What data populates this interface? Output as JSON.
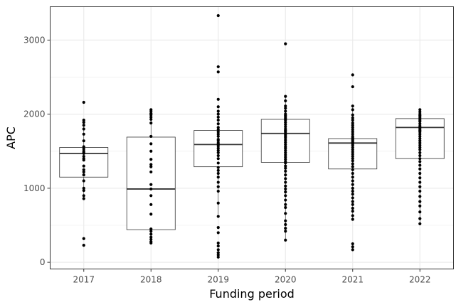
{
  "chart_data": {
    "type": "boxplot",
    "title": "",
    "xlabel": "Funding period",
    "ylabel": "APC",
    "categories": [
      "2017",
      "2018",
      "2019",
      "2020",
      "2021",
      "2022"
    ],
    "ylim": [
      -90,
      3450
    ],
    "yticks": [
      0,
      1000,
      2000,
      3000
    ],
    "grid": true,
    "legend": "none",
    "colors": {
      "box": "#333333",
      "points": "#000000",
      "grid": "#ebebeb",
      "panel_border": "#333333"
    },
    "boxes": [
      {
        "category": "2017",
        "q1": 1150,
        "median": 1470,
        "q3": 1550,
        "whisker_low": 880,
        "whisker_high": 1920
      },
      {
        "category": "2018",
        "q1": 440,
        "median": 990,
        "q3": 1690,
        "whisker_low": 260,
        "whisker_high": 2060
      },
      {
        "category": "2019",
        "q1": 1290,
        "median": 1590,
        "q3": 1780,
        "whisker_low": 650,
        "whisker_high": 2050
      },
      {
        "category": "2020",
        "q1": 1350,
        "median": 1740,
        "q3": 1930,
        "whisker_low": 300,
        "whisker_high": 2240
      },
      {
        "category": "2021",
        "q1": 1260,
        "median": 1610,
        "q3": 1670,
        "whisker_low": 580,
        "whisker_high": 2110
      },
      {
        "category": "2022",
        "q1": 1400,
        "median": 1820,
        "q3": 1940,
        "whisker_low": 520,
        "whisker_high": 2060
      }
    ],
    "points": [
      {
        "category": "2017",
        "values": [
          2160,
          1920,
          1890,
          1850,
          1800,
          1730,
          1640,
          1560,
          1530,
          1500,
          1480,
          1470,
          1430,
          1400,
          1380,
          1300,
          1250,
          1220,
          1180,
          1100,
          1000,
          970,
          900,
          860,
          320,
          230
        ]
      },
      {
        "category": "2018",
        "values": [
          2060,
          2040,
          2010,
          1990,
          1960,
          1930,
          1880,
          1700,
          1600,
          1500,
          1390,
          1320,
          1290,
          1220,
          1050,
          990,
          900,
          780,
          650,
          450,
          420,
          380,
          340,
          310,
          280,
          260
        ]
      },
      {
        "category": "2019",
        "values": [
          3330,
          2640,
          2570,
          2200,
          2100,
          2040,
          2000,
          1960,
          1920,
          1870,
          1820,
          1790,
          1760,
          1730,
          1700,
          1660,
          1640,
          1610,
          1590,
          1570,
          1540,
          1510,
          1480,
          1440,
          1400,
          1340,
          1280,
          1240,
          1200,
          1150,
          1080,
          1020,
          960,
          800,
          620,
          470,
          400,
          260,
          220,
          170,
          130,
          100,
          70
        ]
      },
      {
        "category": "2020",
        "values": [
          2950,
          2240,
          2180,
          2110,
          2080,
          2040,
          2000,
          1980,
          1960,
          1940,
          1920,
          1890,
          1860,
          1830,
          1800,
          1780,
          1760,
          1740,
          1720,
          1700,
          1680,
          1650,
          1620,
          1590,
          1560,
          1540,
          1510,
          1480,
          1450,
          1420,
          1390,
          1360,
          1340,
          1300,
          1270,
          1230,
          1180,
          1130,
          1080,
          1030,
          990,
          950,
          900,
          840,
          780,
          740,
          660,
          560,
          510,
          460,
          420,
          300
        ]
      },
      {
        "category": "2021",
        "values": [
          2530,
          2370,
          2110,
          2060,
          1990,
          1950,
          1920,
          1880,
          1850,
          1820,
          1790,
          1760,
          1730,
          1700,
          1680,
          1660,
          1640,
          1620,
          1600,
          1580,
          1550,
          1520,
          1490,
          1460,
          1430,
          1400,
          1370,
          1330,
          1290,
          1250,
          1200,
          1150,
          1100,
          1050,
          1000,
          960,
          920,
          870,
          820,
          780,
          730,
          690,
          630,
          580,
          250,
          210,
          170
        ]
      },
      {
        "category": "2022",
        "values": [
          2060,
          2030,
          2000,
          1980,
          1960,
          1940,
          1920,
          1900,
          1870,
          1840,
          1820,
          1800,
          1780,
          1760,
          1730,
          1700,
          1670,
          1640,
          1610,
          1580,
          1550,
          1520,
          1480,
          1440,
          1400,
          1360,
          1310,
          1260,
          1200,
          1140,
          1080,
          1020,
          960,
          890,
          820,
          760,
          680,
          590,
          520
        ]
      }
    ]
  }
}
